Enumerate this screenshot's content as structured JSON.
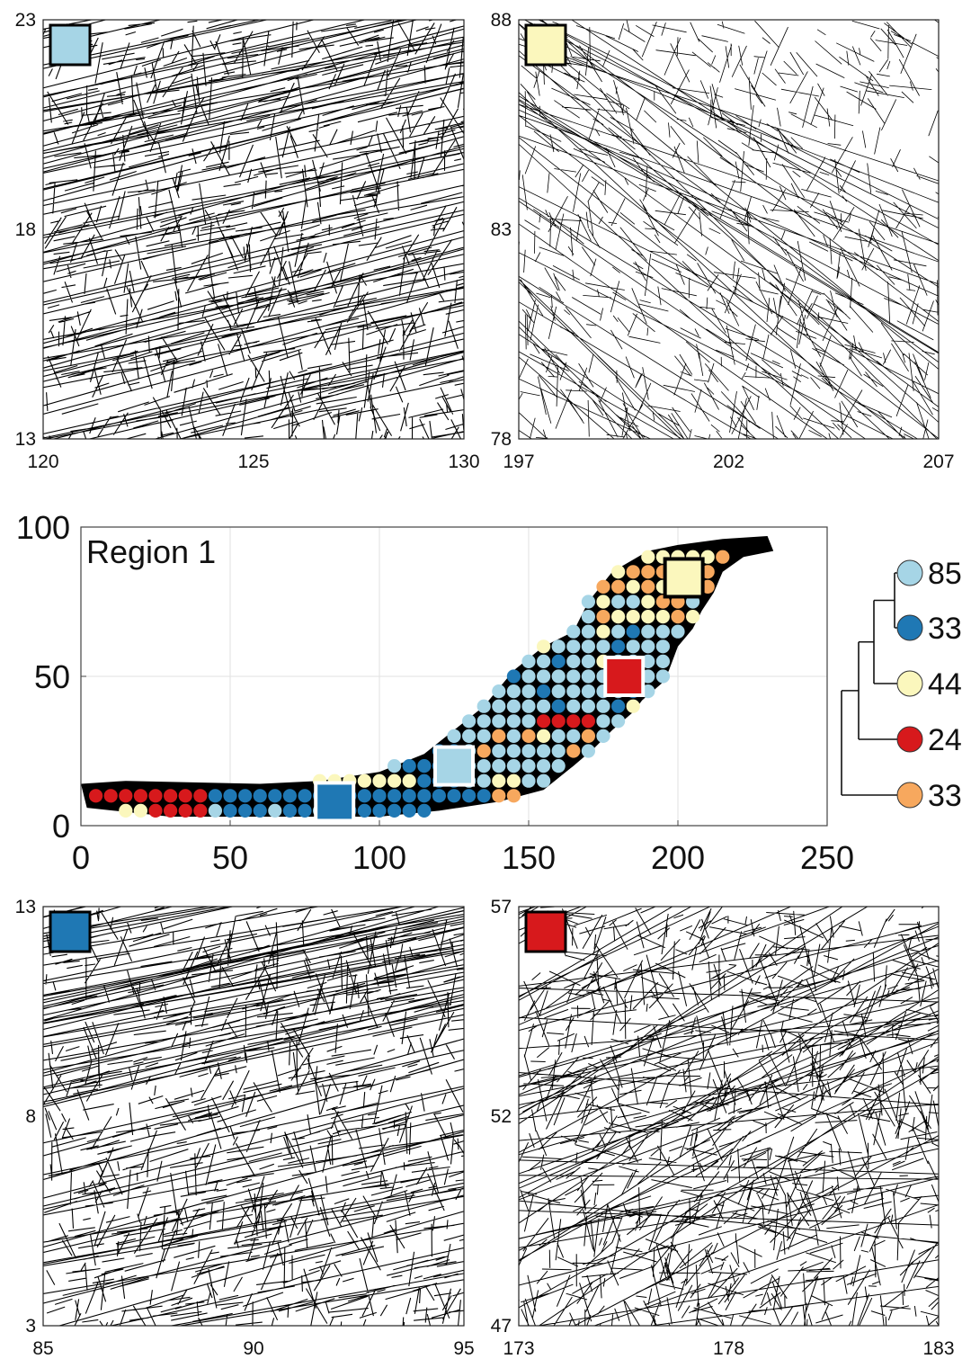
{
  "colors": {
    "light_blue": "#a6d5e6",
    "dark_blue": "#1f78b4",
    "pale_yellow": "#fbf7bd",
    "red": "#d7191c",
    "orange": "#f7a85e",
    "region_fill": "#000000"
  },
  "chart_data": [
    {
      "type": "network",
      "panel": "top-left",
      "marker_color": "light_blue",
      "xlim": [
        120,
        130
      ],
      "ylim": [
        13,
        23
      ],
      "xticks": [
        "120",
        "125",
        "130"
      ],
      "yticks": [
        "13",
        "18",
        "23"
      ],
      "fracture_orientation": "low-angle, dense, sub-horizontal"
    },
    {
      "type": "network",
      "panel": "top-right",
      "marker_color": "pale_yellow",
      "xlim": [
        197,
        207
      ],
      "ylim": [
        78,
        88
      ],
      "xticks": [
        "197",
        "202",
        "207"
      ],
      "yticks": [
        "78",
        "83",
        "88"
      ],
      "fracture_orientation": "diagonal, sparse"
    },
    {
      "type": "scatter",
      "panel": "middle",
      "title": "Region 1",
      "xlim": [
        0,
        250
      ],
      "ylim": [
        0,
        100
      ],
      "xticks": [
        "0",
        "50",
        "100",
        "150",
        "200",
        "250"
      ],
      "yticks": [
        "0",
        "50",
        "100"
      ],
      "grid": true,
      "sample_squares": [
        {
          "color": "light_blue",
          "x": 125,
          "y": 20
        },
        {
          "color": "pale_yellow",
          "x": 202,
          "y": 83
        },
        {
          "color": "dark_blue",
          "x": 85,
          "y": 8
        },
        {
          "color": "red",
          "x": 182,
          "y": 50
        }
      ],
      "legend": {
        "placement": "right",
        "entries": [
          {
            "color": "light_blue",
            "label": "85"
          },
          {
            "color": "dark_blue",
            "label": "33"
          },
          {
            "color": "pale_yellow",
            "label": "44"
          },
          {
            "color": "red",
            "label": "24"
          },
          {
            "color": "orange",
            "label": "33"
          }
        ]
      }
    },
    {
      "type": "network",
      "panel": "bottom-left",
      "marker_color": "dark_blue",
      "xlim": [
        85,
        95
      ],
      "ylim": [
        3,
        13
      ],
      "xticks": [
        "85",
        "90",
        "95"
      ],
      "yticks": [
        "3",
        "8",
        "13"
      ],
      "fracture_orientation": "low-angle, dense"
    },
    {
      "type": "network",
      "panel": "bottom-right",
      "marker_color": "red",
      "xlim": [
        173,
        183
      ],
      "ylim": [
        47,
        57
      ],
      "xticks": [
        "173",
        "178",
        "183"
      ],
      "yticks": [
        "47",
        "52",
        "57"
      ],
      "fracture_orientation": "mixed, dense"
    }
  ]
}
